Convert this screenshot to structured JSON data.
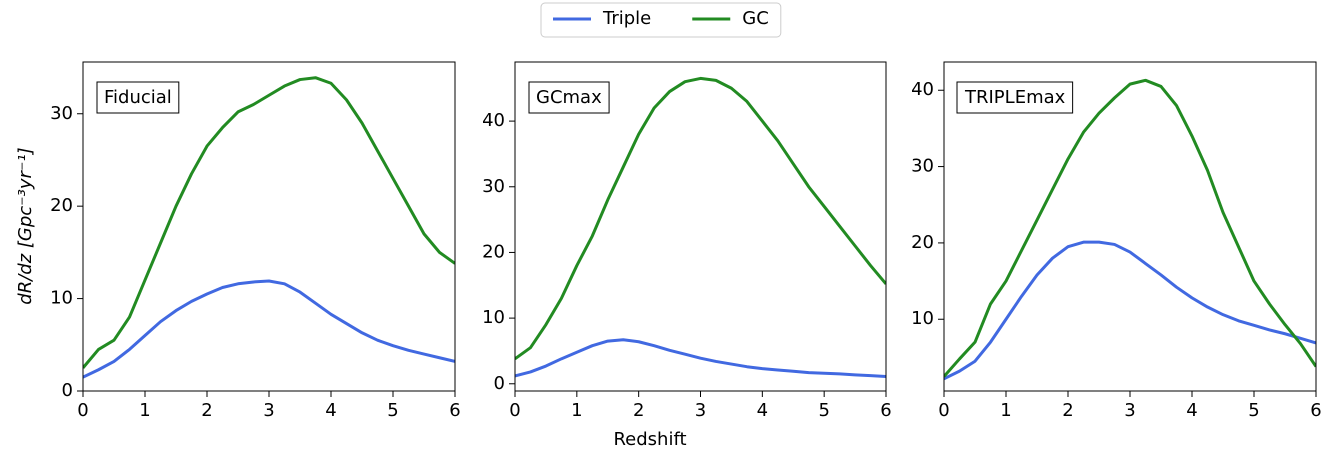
{
  "xlabel": "Redshift",
  "ylabel": "dR/dz [Gpc⁻³yr⁻¹]",
  "chart_data": [
    {
      "type": "line",
      "annotation": "Fiducial",
      "x": [
        0,
        0.25,
        0.5,
        0.75,
        1,
        1.25,
        1.5,
        1.75,
        2,
        2.25,
        2.5,
        2.75,
        3,
        3.25,
        3.5,
        3.75,
        4,
        4.25,
        4.5,
        4.75,
        5,
        5.25,
        5.5,
        5.75,
        6
      ],
      "series": [
        {
          "name": "Triple",
          "color": "#4169e1",
          "values": [
            1.5,
            2.3,
            3.2,
            4.5,
            6,
            7.5,
            8.7,
            9.7,
            10.5,
            11.2,
            11.6,
            11.8,
            11.9,
            11.6,
            10.7,
            9.5,
            8.3,
            7.3,
            6.3,
            5.5,
            4.9,
            4.4,
            4,
            3.6,
            3.2
          ]
        },
        {
          "name": "GC",
          "color": "#228b22",
          "values": [
            2.5,
            4.5,
            5.5,
            8,
            12,
            16,
            20,
            23.5,
            26.5,
            28.5,
            30.2,
            31,
            32,
            33,
            33.7,
            33.9,
            33.3,
            31.5,
            29,
            26,
            23,
            20,
            17,
            15,
            13.8
          ]
        }
      ],
      "xlim": [
        0,
        6
      ],
      "xticks": [
        0,
        1,
        2,
        3,
        4,
        5,
        6
      ],
      "ylim": [
        0,
        35.6
      ],
      "yticks": [
        0,
        10,
        20,
        30
      ]
    },
    {
      "type": "line",
      "annotation": "GCmax",
      "x": [
        0,
        0.25,
        0.5,
        0.75,
        1,
        1.25,
        1.5,
        1.75,
        2,
        2.25,
        2.5,
        2.75,
        3,
        3.25,
        3.5,
        3.75,
        4,
        4.25,
        4.5,
        4.75,
        5,
        5.25,
        5.5,
        5.75,
        6
      ],
      "series": [
        {
          "name": "Triple",
          "color": "#4169e1",
          "values": [
            1.2,
            1.8,
            2.7,
            3.8,
            4.8,
            5.8,
            6.5,
            6.7,
            6.4,
            5.8,
            5.1,
            4.5,
            3.9,
            3.4,
            3.0,
            2.6,
            2.3,
            2.1,
            1.9,
            1.7,
            1.6,
            1.5,
            1.35,
            1.25,
            1.1
          ]
        },
        {
          "name": "GC",
          "color": "#228b22",
          "values": [
            3.8,
            5.5,
            9,
            13,
            18,
            22.5,
            28,
            33,
            38,
            42,
            44.5,
            46,
            46.5,
            46.2,
            45,
            43,
            40,
            37,
            33.5,
            30,
            27,
            24,
            21,
            18,
            15.2
          ]
        }
      ],
      "xlim": [
        0,
        6
      ],
      "xticks": [
        0,
        1,
        2,
        3,
        4,
        5,
        6
      ],
      "ylim": [
        -1.1,
        49
      ],
      "yticks": [
        0,
        10,
        20,
        30,
        40
      ]
    },
    {
      "type": "line",
      "annotation": "TRIPLEmax",
      "x": [
        0,
        0.25,
        0.5,
        0.75,
        1,
        1.25,
        1.5,
        1.75,
        2,
        2.25,
        2.5,
        2.75,
        3,
        3.25,
        3.5,
        3.75,
        4,
        4.25,
        4.5,
        4.75,
        5,
        5.25,
        5.5,
        5.75,
        6
      ],
      "series": [
        {
          "name": "Triple",
          "color": "#4169e1",
          "values": [
            2.2,
            3.2,
            4.5,
            7,
            10,
            13,
            15.8,
            18,
            19.5,
            20.1,
            20.1,
            19.8,
            18.8,
            17.3,
            15.8,
            14.2,
            12.8,
            11.6,
            10.6,
            9.8,
            9.2,
            8.6,
            8.1,
            7.5,
            6.9
          ]
        },
        {
          "name": "GC",
          "color": "#228b22",
          "values": [
            2.5,
            4.8,
            7,
            12,
            15,
            19,
            23,
            27,
            31,
            34.5,
            37,
            39,
            40.8,
            41.3,
            40.5,
            38,
            34,
            29.5,
            24,
            19.5,
            15,
            12,
            9.3,
            6.8,
            3.8
          ]
        }
      ],
      "xlim": [
        0,
        6
      ],
      "xticks": [
        0,
        1,
        2,
        3,
        4,
        5,
        6
      ],
      "ylim": [
        0.6,
        43.7
      ],
      "yticks": [
        10,
        20,
        30,
        40
      ]
    }
  ]
}
